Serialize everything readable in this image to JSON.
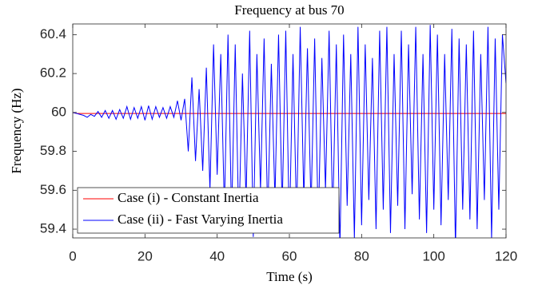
{
  "chart_data": {
    "type": "line",
    "title": "Frequency at bus 70",
    "xlabel": "Time (s)",
    "ylabel": "Frequency (Hz)",
    "x": [
      0,
      1,
      2,
      3,
      4,
      5,
      6,
      7,
      8,
      9,
      10,
      11,
      12,
      13,
      14,
      15,
      16,
      17,
      18,
      19,
      20,
      21,
      22,
      23,
      24,
      25,
      26,
      27,
      28,
      29,
      30,
      31,
      32,
      33,
      34,
      35,
      36,
      37,
      38,
      39,
      40,
      41,
      42,
      43,
      44,
      45,
      46,
      47,
      48,
      49,
      50,
      51,
      52,
      53,
      54,
      55,
      56,
      57,
      58,
      59,
      60,
      61,
      62,
      63,
      64,
      65,
      66,
      67,
      68,
      69,
      70,
      71,
      72,
      73,
      74,
      75,
      76,
      77,
      78,
      79,
      80,
      81,
      82,
      83,
      84,
      85,
      86,
      87,
      88,
      89,
      90,
      91,
      92,
      93,
      94,
      95,
      96,
      97,
      98,
      99,
      100,
      101,
      102,
      103,
      104,
      105,
      106,
      107,
      108,
      109,
      110,
      111,
      112,
      113,
      114,
      115,
      116,
      117,
      118,
      119,
      120
    ],
    "series": [
      {
        "name": "Case (i) - Constant Inertia",
        "color": "#ff0000",
        "values": [
          60,
          59.995,
          59.995,
          59.995,
          59.995,
          59.995,
          59.995,
          59.995,
          59.995,
          59.995,
          59.995,
          59.995,
          59.995,
          59.995,
          59.995,
          59.995,
          59.995,
          59.995,
          59.995,
          59.995,
          59.995,
          59.995,
          59.995,
          59.995,
          59.995,
          59.995,
          59.995,
          59.995,
          59.995,
          59.995,
          59.995,
          59.995,
          59.995,
          59.995,
          59.995,
          59.995,
          59.995,
          59.995,
          59.995,
          59.995,
          59.995,
          59.995,
          59.995,
          59.995,
          59.995,
          59.995,
          59.995,
          59.995,
          59.995,
          59.995,
          59.995,
          59.995,
          59.995,
          59.995,
          59.995,
          59.995,
          59.995,
          59.995,
          59.995,
          59.995,
          59.995,
          59.995,
          59.995,
          59.995,
          59.995,
          59.995,
          59.995,
          59.995,
          59.995,
          59.995,
          59.995,
          59.995,
          59.995,
          59.995,
          59.995,
          59.995,
          59.995,
          59.995,
          59.995,
          59.995,
          59.995,
          59.995,
          59.995,
          59.995,
          59.995,
          59.995,
          59.995,
          59.995,
          59.995,
          59.995,
          59.995,
          59.995,
          59.995,
          59.995,
          59.995,
          59.995,
          59.995,
          59.995,
          59.995,
          59.995,
          59.995,
          59.995,
          59.995,
          59.995,
          59.995,
          59.995,
          59.995,
          59.995,
          59.995,
          59.995,
          59.995,
          59.995,
          59.995,
          59.995,
          59.995,
          59.995,
          59.995,
          59.995,
          59.995,
          59.995,
          59.995
        ]
      },
      {
        "name": "Case (ii) - Fast Varying Inertia",
        "color": "#0000ff",
        "values": [
          60,
          59.995,
          59.99,
          59.985,
          59.975,
          59.99,
          59.98,
          60.005,
          59.975,
          60.01,
          59.97,
          60.01,
          59.965,
          60.015,
          59.97,
          60.03,
          59.965,
          60.025,
          59.97,
          60.03,
          59.96,
          60.035,
          59.965,
          60.03,
          59.975,
          60.025,
          59.97,
          60.03,
          59.975,
          60.06,
          59.96,
          60.07,
          59.8,
          60.18,
          59.75,
          60.12,
          59.7,
          60.23,
          59.6,
          60.35,
          59.68,
          60.3,
          59.5,
          60.4,
          59.45,
          60.35,
          59.4,
          60.2,
          59.55,
          60.42,
          59.36,
          60.3,
          59.6,
          60.38,
          59.45,
          60.25,
          59.55,
          60.4,
          59.5,
          60.42,
          59.38,
          60.3,
          59.45,
          60.44,
          59.55,
          60.33,
          59.5,
          60.38,
          59.4,
          60.28,
          59.6,
          60.42,
          59.45,
          60.35,
          59.3,
          60.4,
          59.52,
          60.3,
          59.35,
          60.44,
          59.42,
          60.35,
          59.55,
          60.28,
          59.4,
          60.42,
          59.5,
          60.44,
          59.38,
          60.3,
          59.52,
          60.42,
          59.4,
          60.35,
          59.58,
          60.44,
          59.45,
          60.3,
          59.38,
          60.45,
          59.5,
          60.4,
          59.42,
          60.3,
          59.55,
          60.43,
          59.3,
          60.38,
          59.5,
          60.35,
          59.45,
          60.42,
          59.4,
          60.3,
          59.55,
          60.44,
          59.35,
          60.38,
          59.5,
          60.4,
          60.15
        ]
      }
    ],
    "xlim": [
      0,
      120
    ],
    "ylim": [
      59.355,
      60.455
    ],
    "xticks": [
      0,
      20,
      40,
      60,
      80,
      100,
      120
    ],
    "yticks": [
      59.4,
      59.6,
      59.8,
      60,
      60.2,
      60.4
    ],
    "legend": "lower left"
  }
}
